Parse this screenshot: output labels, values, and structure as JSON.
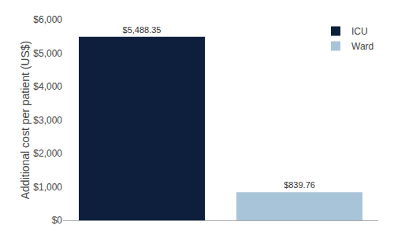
{
  "chart_data": {
    "type": "bar",
    "categories": [
      "ICU",
      "Ward"
    ],
    "values": [
      5488.35,
      839.76
    ],
    "value_labels": [
      "$5,488.35",
      "$839.76"
    ],
    "colors": [
      "#0d1f3c",
      "#a8c4d8"
    ],
    "ylabel": "Additional cost per patient (US$)",
    "ylim": [
      0,
      6000
    ],
    "yticks": [
      {
        "value": 0,
        "label": "$0"
      },
      {
        "value": 1000,
        "label": "$1,000"
      },
      {
        "value": 2000,
        "label": "$2,000"
      },
      {
        "value": 3000,
        "label": "$3,000"
      },
      {
        "value": 4000,
        "label": "$4,000"
      },
      {
        "value": 5000,
        "label": "$5,000"
      },
      {
        "value": 6000,
        "label": "$6,000"
      }
    ],
    "grid": false,
    "legend": "upper right",
    "data_labels": true,
    "tick_labels": "y"
  }
}
